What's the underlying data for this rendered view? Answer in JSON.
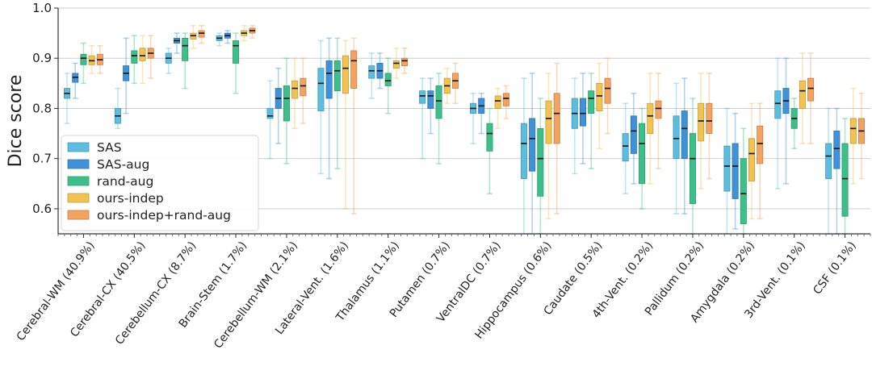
{
  "chart_data": {
    "type": "box",
    "title": "",
    "xlabel": "",
    "ylabel": "Dice score",
    "ylim": [
      0.55,
      1.0
    ],
    "yticks": [
      0.6,
      0.7,
      0.8,
      0.9,
      1.0
    ],
    "grid": true,
    "legend_position": "lower-left",
    "categories": [
      "Cerebral-WM (40.9%)",
      "Cerebral-CX (40.5%)",
      "Cerebellum-CX (8.7%)",
      "Brain-Stem (1.7%)",
      "Cerebellum-WM (2.1%)",
      "Lateral-Vent. (1.6%)",
      "Thalamus (1.1%)",
      "Putamen (0.7%)",
      "VentralDC (0.7%)",
      "Hippocampus (0.6%)",
      "Caudate (0.5%)",
      "4th-Vent. (0.2%)",
      "Pallidum (0.2%)",
      "Amygdala (0.2%)",
      "3rd-Vent. (0.1%)",
      "CSF (0.1%)"
    ],
    "series": [
      {
        "name": "SAS",
        "color": "#5bbde0",
        "boxes": [
          {
            "min": 0.77,
            "q1": 0.82,
            "median": 0.83,
            "q3": 0.84,
            "max": 0.87
          },
          {
            "min": 0.76,
            "q1": 0.77,
            "median": 0.785,
            "q3": 0.8,
            "max": 0.84
          },
          {
            "min": 0.87,
            "q1": 0.89,
            "median": 0.9,
            "q3": 0.91,
            "max": 0.92
          },
          {
            "min": 0.925,
            "q1": 0.935,
            "median": 0.94,
            "q3": 0.945,
            "max": 0.95
          },
          {
            "min": 0.7,
            "q1": 0.78,
            "median": 0.785,
            "q3": 0.8,
            "max": 0.855
          },
          {
            "min": 0.67,
            "q1": 0.795,
            "median": 0.85,
            "q3": 0.88,
            "max": 0.935
          },
          {
            "min": 0.82,
            "q1": 0.86,
            "median": 0.875,
            "q3": 0.885,
            "max": 0.91
          },
          {
            "min": 0.7,
            "q1": 0.81,
            "median": 0.825,
            "q3": 0.835,
            "max": 0.86
          },
          {
            "min": 0.73,
            "q1": 0.79,
            "median": 0.8,
            "q3": 0.81,
            "max": 0.83
          },
          {
            "min": 0.55,
            "q1": 0.66,
            "median": 0.73,
            "q3": 0.77,
            "max": 0.86
          },
          {
            "min": 0.67,
            "q1": 0.76,
            "median": 0.79,
            "q3": 0.82,
            "max": 0.86
          },
          {
            "min": 0.63,
            "q1": 0.695,
            "median": 0.725,
            "q3": 0.75,
            "max": 0.81
          },
          {
            "min": 0.59,
            "q1": 0.7,
            "median": 0.74,
            "q3": 0.785,
            "max": 0.85
          },
          {
            "min": 0.55,
            "q1": 0.635,
            "median": 0.685,
            "q3": 0.725,
            "max": 0.8
          },
          {
            "min": 0.64,
            "q1": 0.78,
            "median": 0.81,
            "q3": 0.835,
            "max": 0.9
          },
          {
            "min": 0.55,
            "q1": 0.66,
            "median": 0.705,
            "q3": 0.73,
            "max": 0.8
          }
        ]
      },
      {
        "name": "SAS-aug",
        "color": "#3f92d8",
        "boxes": [
          {
            "min": 0.82,
            "q1": 0.852,
            "median": 0.862,
            "q3": 0.87,
            "max": 0.89
          },
          {
            "min": 0.79,
            "q1": 0.855,
            "median": 0.87,
            "q3": 0.885,
            "max": 0.94
          },
          {
            "min": 0.91,
            "q1": 0.93,
            "median": 0.935,
            "q3": 0.94,
            "max": 0.95
          },
          {
            "min": 0.93,
            "q1": 0.94,
            "median": 0.945,
            "q3": 0.95,
            "max": 0.955
          },
          {
            "min": 0.73,
            "q1": 0.8,
            "median": 0.82,
            "q3": 0.84,
            "max": 0.88
          },
          {
            "min": 0.66,
            "q1": 0.82,
            "median": 0.87,
            "q3": 0.895,
            "max": 0.94
          },
          {
            "min": 0.84,
            "q1": 0.86,
            "median": 0.875,
            "q3": 0.89,
            "max": 0.91
          },
          {
            "min": 0.75,
            "q1": 0.8,
            "median": 0.825,
            "q3": 0.835,
            "max": 0.86
          },
          {
            "min": 0.75,
            "q1": 0.79,
            "median": 0.805,
            "q3": 0.82,
            "max": 0.83
          },
          {
            "min": 0.55,
            "q1": 0.675,
            "median": 0.74,
            "q3": 0.78,
            "max": 0.87
          },
          {
            "min": 0.69,
            "q1": 0.765,
            "median": 0.79,
            "q3": 0.82,
            "max": 0.87
          },
          {
            "min": 0.65,
            "q1": 0.71,
            "median": 0.755,
            "q3": 0.785,
            "max": 0.83
          },
          {
            "min": 0.59,
            "q1": 0.7,
            "median": 0.76,
            "q3": 0.795,
            "max": 0.86
          },
          {
            "min": 0.56,
            "q1": 0.62,
            "median": 0.685,
            "q3": 0.73,
            "max": 0.79
          },
          {
            "min": 0.65,
            "q1": 0.79,
            "median": 0.815,
            "q3": 0.84,
            "max": 0.9
          },
          {
            "min": 0.55,
            "q1": 0.68,
            "median": 0.72,
            "q3": 0.755,
            "max": 0.8
          }
        ]
      },
      {
        "name": "rand-aug",
        "color": "#3dbf8a",
        "boxes": [
          {
            "min": 0.85,
            "q1": 0.887,
            "median": 0.9,
            "q3": 0.908,
            "max": 0.93
          },
          {
            "min": 0.85,
            "q1": 0.89,
            "median": 0.905,
            "q3": 0.915,
            "max": 0.945
          },
          {
            "min": 0.84,
            "q1": 0.895,
            "median": 0.925,
            "q3": 0.94,
            "max": 0.95
          },
          {
            "min": 0.83,
            "q1": 0.89,
            "median": 0.925,
            "q3": 0.935,
            "max": 0.95
          },
          {
            "min": 0.69,
            "q1": 0.775,
            "median": 0.82,
            "q3": 0.845,
            "max": 0.9
          },
          {
            "min": 0.68,
            "q1": 0.835,
            "median": 0.875,
            "q3": 0.895,
            "max": 0.94
          },
          {
            "min": 0.79,
            "q1": 0.845,
            "median": 0.855,
            "q3": 0.87,
            "max": 0.9
          },
          {
            "min": 0.69,
            "q1": 0.78,
            "median": 0.815,
            "q3": 0.845,
            "max": 0.87
          },
          {
            "min": 0.63,
            "q1": 0.715,
            "median": 0.75,
            "q3": 0.77,
            "max": 0.8
          },
          {
            "min": 0.55,
            "q1": 0.625,
            "median": 0.7,
            "q3": 0.76,
            "max": 0.82
          },
          {
            "min": 0.68,
            "q1": 0.79,
            "median": 0.82,
            "q3": 0.835,
            "max": 0.87
          },
          {
            "min": 0.6,
            "q1": 0.65,
            "median": 0.73,
            "q3": 0.77,
            "max": 0.8
          },
          {
            "min": 0.55,
            "q1": 0.61,
            "median": 0.7,
            "q3": 0.75,
            "max": 0.82
          },
          {
            "min": 0.55,
            "q1": 0.57,
            "median": 0.63,
            "q3": 0.7,
            "max": 0.76
          },
          {
            "min": 0.72,
            "q1": 0.76,
            "median": 0.78,
            "q3": 0.8,
            "max": 0.82
          },
          {
            "min": 0.55,
            "q1": 0.585,
            "median": 0.66,
            "q3": 0.73,
            "max": 0.78
          }
        ]
      },
      {
        "name": "ours-indep",
        "color": "#f2c44f",
        "boxes": [
          {
            "min": 0.87,
            "q1": 0.887,
            "median": 0.895,
            "q3": 0.905,
            "max": 0.925
          },
          {
            "min": 0.85,
            "q1": 0.895,
            "median": 0.905,
            "q3": 0.92,
            "max": 0.945
          },
          {
            "min": 0.92,
            "q1": 0.938,
            "median": 0.945,
            "q3": 0.95,
            "max": 0.965
          },
          {
            "min": 0.935,
            "q1": 0.945,
            "median": 0.95,
            "q3": 0.955,
            "max": 0.965
          },
          {
            "min": 0.76,
            "q1": 0.82,
            "median": 0.84,
            "q3": 0.855,
            "max": 0.9
          },
          {
            "min": 0.6,
            "q1": 0.83,
            "median": 0.88,
            "q3": 0.905,
            "max": 0.935
          },
          {
            "min": 0.86,
            "q1": 0.88,
            "median": 0.89,
            "q3": 0.895,
            "max": 0.92
          },
          {
            "min": 0.81,
            "q1": 0.83,
            "median": 0.845,
            "q3": 0.86,
            "max": 0.88
          },
          {
            "min": 0.76,
            "q1": 0.8,
            "median": 0.815,
            "q3": 0.825,
            "max": 0.84
          },
          {
            "min": 0.58,
            "q1": 0.73,
            "median": 0.78,
            "q3": 0.815,
            "max": 0.87
          },
          {
            "min": 0.72,
            "q1": 0.795,
            "median": 0.825,
            "q3": 0.85,
            "max": 0.89
          },
          {
            "min": 0.65,
            "q1": 0.75,
            "median": 0.785,
            "q3": 0.81,
            "max": 0.87
          },
          {
            "min": 0.64,
            "q1": 0.735,
            "median": 0.775,
            "q3": 0.81,
            "max": 0.87
          },
          {
            "min": 0.58,
            "q1": 0.655,
            "median": 0.71,
            "q3": 0.74,
            "max": 0.81
          },
          {
            "min": 0.73,
            "q1": 0.8,
            "median": 0.835,
            "q3": 0.855,
            "max": 0.91
          },
          {
            "min": 0.65,
            "q1": 0.73,
            "median": 0.76,
            "q3": 0.78,
            "max": 0.84
          }
        ]
      },
      {
        "name": "ours-indep+rand-aug",
        "color": "#f3a35f",
        "boxes": [
          {
            "min": 0.87,
            "q1": 0.887,
            "median": 0.897,
            "q3": 0.908,
            "max": 0.925
          },
          {
            "min": 0.86,
            "q1": 0.9,
            "median": 0.91,
            "q3": 0.92,
            "max": 0.945
          },
          {
            "min": 0.93,
            "q1": 0.942,
            "median": 0.95,
            "q3": 0.955,
            "max": 0.965
          },
          {
            "min": 0.94,
            "q1": 0.95,
            "median": 0.955,
            "q3": 0.96,
            "max": 0.965
          },
          {
            "min": 0.77,
            "q1": 0.825,
            "median": 0.845,
            "q3": 0.86,
            "max": 0.9
          },
          {
            "min": 0.59,
            "q1": 0.84,
            "median": 0.895,
            "q3": 0.915,
            "max": 0.94
          },
          {
            "min": 0.87,
            "q1": 0.885,
            "median": 0.895,
            "q3": 0.9,
            "max": 0.92
          },
          {
            "min": 0.81,
            "q1": 0.84,
            "median": 0.855,
            "q3": 0.87,
            "max": 0.89
          },
          {
            "min": 0.78,
            "q1": 0.805,
            "median": 0.82,
            "q3": 0.83,
            "max": 0.845
          },
          {
            "min": 0.59,
            "q1": 0.73,
            "median": 0.79,
            "q3": 0.83,
            "max": 0.89
          },
          {
            "min": 0.75,
            "q1": 0.81,
            "median": 0.84,
            "q3": 0.86,
            "max": 0.9
          },
          {
            "min": 0.68,
            "q1": 0.78,
            "median": 0.8,
            "q3": 0.815,
            "max": 0.87
          },
          {
            "min": 0.66,
            "q1": 0.75,
            "median": 0.775,
            "q3": 0.81,
            "max": 0.87
          },
          {
            "min": 0.58,
            "q1": 0.69,
            "median": 0.73,
            "q3": 0.765,
            "max": 0.81
          },
          {
            "min": 0.73,
            "q1": 0.815,
            "median": 0.84,
            "q3": 0.86,
            "max": 0.91
          },
          {
            "min": 0.66,
            "q1": 0.73,
            "median": 0.755,
            "q3": 0.78,
            "max": 0.83
          }
        ]
      }
    ]
  }
}
